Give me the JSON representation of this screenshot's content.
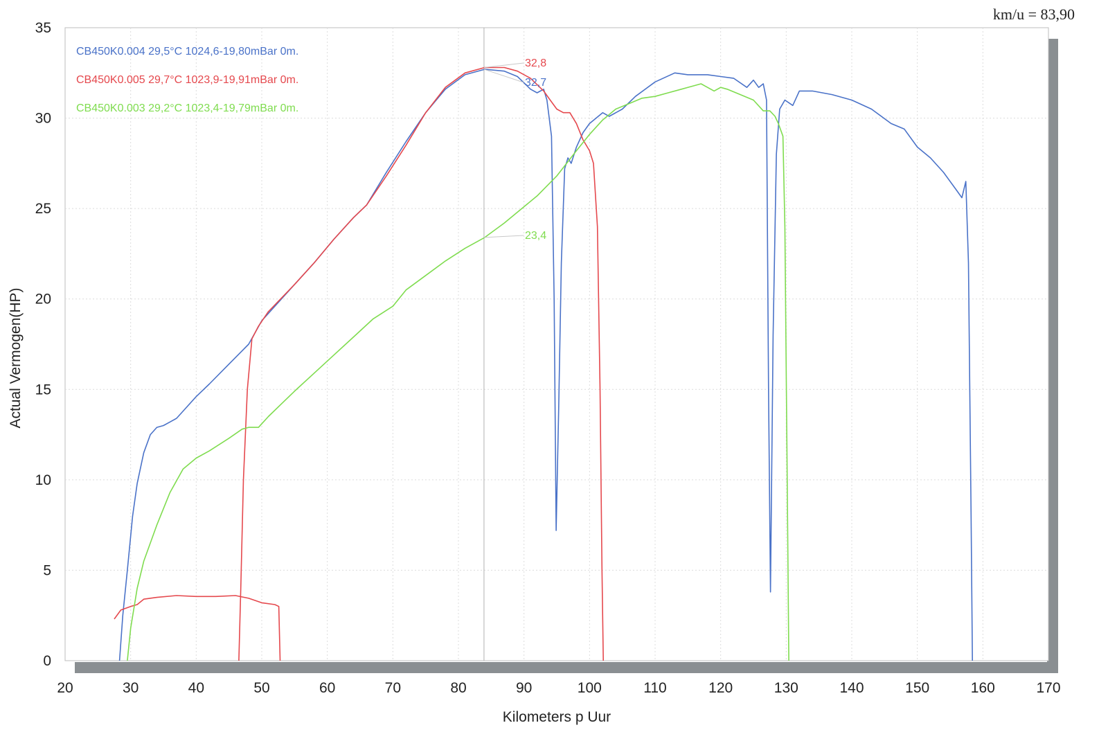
{
  "readout": "km/u = 83,90",
  "chart_data": {
    "type": "line",
    "xlabel": "Kilometers p Uur",
    "ylabel": "Actual Vermogen(HP)",
    "xlim": [
      20,
      170
    ],
    "ylim": [
      0,
      35
    ],
    "xticks": [
      20,
      30,
      40,
      50,
      60,
      70,
      80,
      90,
      100,
      110,
      120,
      130,
      140,
      150,
      160,
      170
    ],
    "yticks": [
      0,
      5,
      10,
      15,
      20,
      25,
      30,
      35
    ],
    "grid": true,
    "legend_position": "top-left",
    "cursor_x": 83.9,
    "series": [
      {
        "name": "CB450K0.004 29,5°C 1024,6-19,80mBar 0m.",
        "color": "#4a72c8",
        "points": [
          [
            28.3,
            0
          ],
          [
            28.8,
            2.5
          ],
          [
            29.5,
            5
          ],
          [
            30.3,
            8
          ],
          [
            31,
            9.8
          ],
          [
            32,
            11.5
          ],
          [
            33,
            12.5
          ],
          [
            34,
            12.9
          ],
          [
            35,
            13
          ],
          [
            36,
            13.2
          ],
          [
            37,
            13.4
          ],
          [
            38,
            13.8
          ],
          [
            40,
            14.6
          ],
          [
            42,
            15.3
          ],
          [
            45,
            16.4
          ],
          [
            48,
            17.5
          ],
          [
            50,
            18.8
          ],
          [
            52,
            19.6
          ],
          [
            55,
            20.8
          ],
          [
            58,
            22
          ],
          [
            61,
            23.3
          ],
          [
            64,
            24.5
          ],
          [
            66,
            25.2
          ],
          [
            69,
            27
          ],
          [
            72,
            28.7
          ],
          [
            75,
            30.3
          ],
          [
            78,
            31.6
          ],
          [
            81,
            32.4
          ],
          [
            84,
            32.7
          ],
          [
            87,
            32.6
          ],
          [
            89,
            32.3
          ],
          [
            91,
            31.6
          ],
          [
            92,
            31.4
          ],
          [
            93,
            31.6
          ],
          [
            93.5,
            31
          ],
          [
            94.2,
            29
          ],
          [
            94.6,
            20
          ],
          [
            94.9,
            7.2
          ],
          [
            95.3,
            14
          ],
          [
            95.7,
            22
          ],
          [
            96.2,
            27.2
          ],
          [
            96.7,
            27.8
          ],
          [
            97.2,
            27.5
          ],
          [
            98,
            28.4
          ],
          [
            99,
            29.2
          ],
          [
            100,
            29.7
          ],
          [
            102,
            30.3
          ],
          [
            103,
            30.1
          ],
          [
            105,
            30.5
          ],
          [
            107,
            31.2
          ],
          [
            110,
            32
          ],
          [
            113,
            32.5
          ],
          [
            115,
            32.4
          ],
          [
            118,
            32.4
          ],
          [
            120,
            32.3
          ],
          [
            122,
            32.2
          ],
          [
            124,
            31.7
          ],
          [
            125,
            32.1
          ],
          [
            125.8,
            31.7
          ],
          [
            126.5,
            31.9
          ],
          [
            127,
            31
          ],
          [
            127.3,
            15
          ],
          [
            127.6,
            3.8
          ],
          [
            128,
            18
          ],
          [
            128.5,
            28
          ],
          [
            129,
            30.5
          ],
          [
            129.8,
            31
          ],
          [
            131,
            30.7
          ],
          [
            132,
            31.5
          ],
          [
            134,
            31.5
          ],
          [
            137,
            31.3
          ],
          [
            140,
            31
          ],
          [
            143,
            30.5
          ],
          [
            146,
            29.7
          ],
          [
            148,
            29.4
          ],
          [
            150,
            28.4
          ],
          [
            152,
            27.8
          ],
          [
            154,
            27
          ],
          [
            156,
            26
          ],
          [
            156.8,
            25.6
          ],
          [
            157.4,
            26.5
          ],
          [
            157.8,
            22
          ],
          [
            158.2,
            8
          ],
          [
            158.4,
            0
          ]
        ]
      },
      {
        "name": "CB450K0.005 29,7°C 1023,9-19,91mBar 0m.",
        "color": "#e5484d",
        "points": [
          [
            27.5,
            2.3
          ],
          [
            28.5,
            2.8
          ],
          [
            30,
            3
          ],
          [
            31,
            3.1
          ],
          [
            32,
            3.4
          ],
          [
            34,
            3.5
          ],
          [
            37,
            3.6
          ],
          [
            40,
            3.55
          ],
          [
            43,
            3.55
          ],
          [
            46,
            3.6
          ],
          [
            48,
            3.45
          ],
          [
            50,
            3.2
          ],
          [
            52,
            3.1
          ],
          [
            52.6,
            3
          ],
          [
            52.8,
            0
          ],
          null,
          [
            46.5,
            0
          ],
          [
            46.8,
            4
          ],
          [
            47.2,
            10
          ],
          [
            47.8,
            15
          ],
          [
            48.5,
            17.8
          ],
          [
            49.5,
            18.5
          ],
          [
            51,
            19.3
          ],
          [
            55,
            20.8
          ],
          [
            58,
            22
          ],
          [
            61,
            23.3
          ],
          [
            64,
            24.5
          ],
          [
            66,
            25.2
          ],
          [
            69,
            26.8
          ],
          [
            72,
            28.5
          ],
          [
            75,
            30.3
          ],
          [
            78,
            31.7
          ],
          [
            81,
            32.5
          ],
          [
            84,
            32.8
          ],
          [
            87,
            32.8
          ],
          [
            89,
            32.6
          ],
          [
            91,
            32.2
          ],
          [
            93,
            31.5
          ],
          [
            94,
            31
          ],
          [
            95,
            30.5
          ],
          [
            96,
            30.3
          ],
          [
            97,
            30.3
          ],
          [
            98,
            29.7
          ],
          [
            99,
            28.8
          ],
          [
            100,
            28.2
          ],
          [
            100.6,
            27.5
          ],
          [
            101.2,
            24
          ],
          [
            101.6,
            15
          ],
          [
            101.9,
            5
          ],
          [
            102.1,
            0
          ]
        ]
      },
      {
        "name": "CB450K0.003 29,2°C 1023,4-19,79mBar 0m.",
        "color": "#7fdc4f",
        "points": [
          [
            29.5,
            0
          ],
          [
            30,
            1.8
          ],
          [
            31,
            4
          ],
          [
            32,
            5.5
          ],
          [
            34,
            7.5
          ],
          [
            36,
            9.3
          ],
          [
            38,
            10.6
          ],
          [
            40,
            11.2
          ],
          [
            42,
            11.6
          ],
          [
            45,
            12.3
          ],
          [
            47,
            12.8
          ],
          [
            48,
            12.9
          ],
          [
            49.5,
            12.9
          ],
          [
            51,
            13.5
          ],
          [
            53,
            14.2
          ],
          [
            55,
            14.9
          ],
          [
            58,
            15.9
          ],
          [
            61,
            16.9
          ],
          [
            64,
            17.9
          ],
          [
            67,
            18.9
          ],
          [
            70,
            19.6
          ],
          [
            72,
            20.5
          ],
          [
            75,
            21.3
          ],
          [
            78,
            22.1
          ],
          [
            81,
            22.8
          ],
          [
            84,
            23.4
          ],
          [
            87,
            24.2
          ],
          [
            90,
            25.1
          ],
          [
            92,
            25.7
          ],
          [
            95,
            26.8
          ],
          [
            98,
            28.2
          ],
          [
            100,
            29.1
          ],
          [
            102,
            29.9
          ],
          [
            104,
            30.5
          ],
          [
            106,
            30.8
          ],
          [
            108,
            31.1
          ],
          [
            110,
            31.2
          ],
          [
            112,
            31.4
          ],
          [
            114,
            31.6
          ],
          [
            116,
            31.8
          ],
          [
            117,
            31.9
          ],
          [
            118,
            31.7
          ],
          [
            119,
            31.5
          ],
          [
            120,
            31.7
          ],
          [
            121,
            31.6
          ],
          [
            123,
            31.3
          ],
          [
            125,
            31
          ],
          [
            126.5,
            30.4
          ],
          [
            127.5,
            30.4
          ],
          [
            128.3,
            30.1
          ],
          [
            128.8,
            29.7
          ],
          [
            129.5,
            29
          ],
          [
            129.8,
            24
          ],
          [
            130.1,
            12
          ],
          [
            130.4,
            0
          ]
        ]
      }
    ],
    "annotations": [
      {
        "text": "32,8",
        "x": 90,
        "y": 32.8,
        "color": "#e5484d"
      },
      {
        "text": "32,7",
        "x": 90,
        "y": 32.7,
        "color": "#4a72c8"
      },
      {
        "text": "23,4",
        "x": 90,
        "y": 23.4,
        "color": "#7fdc4f"
      }
    ]
  }
}
